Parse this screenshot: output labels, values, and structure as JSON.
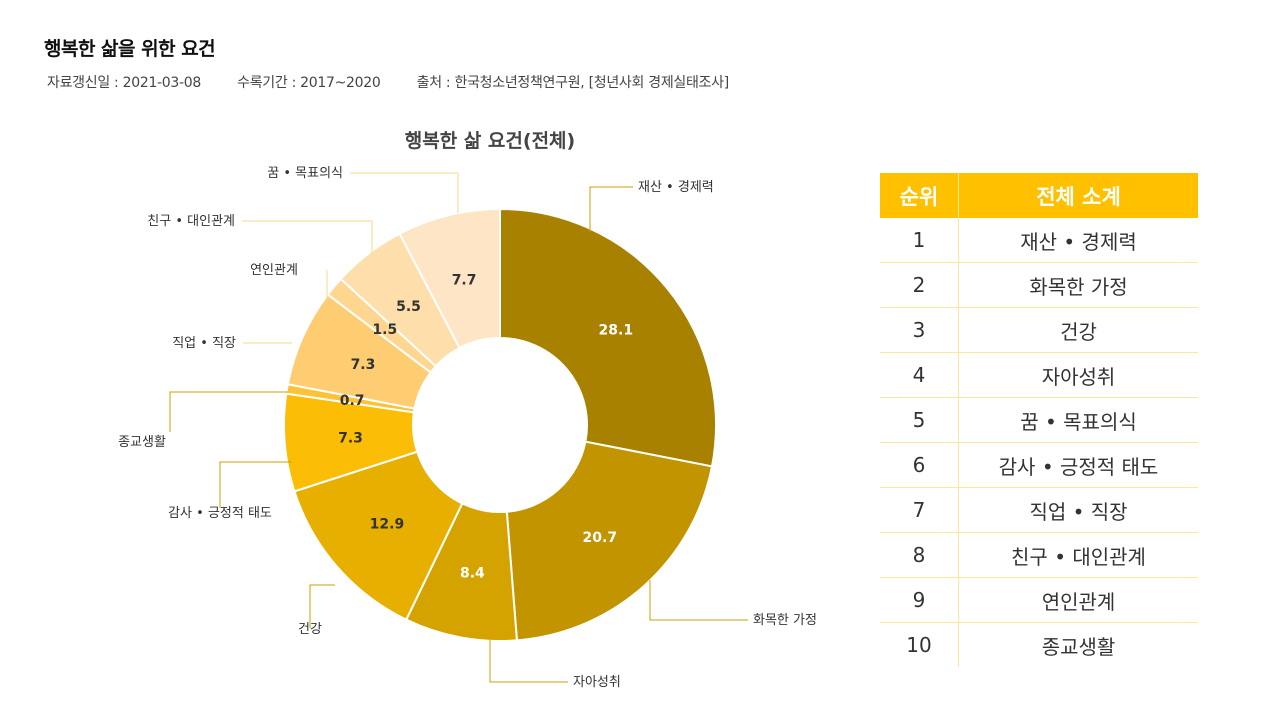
{
  "header": {
    "title": "행복한 삶을 위한 요건",
    "updated": "자료갱신일 : 2021-03-08",
    "period": "수록기간 : 2017~2020",
    "source": "출처 : 한국청소년정책연구원, [청년사회 경제실태조사]"
  },
  "chart_data": {
    "type": "pie",
    "title": "행복한 삶 요건(전체)",
    "donut": true,
    "slices": [
      {
        "label": "재산 • 경제력",
        "value": 28.1,
        "color": "#a88100"
      },
      {
        "label": "화목한 가정",
        "value": 20.7,
        "color": "#c29400"
      },
      {
        "label": "자아성취",
        "value": 8.4,
        "color": "#d5a300"
      },
      {
        "label": "건강",
        "value": 12.9,
        "color": "#e7af00"
      },
      {
        "label": "감사 • 긍정적 태도",
        "value": 7.3,
        "color": "#fbbd06"
      },
      {
        "label": "종교생활",
        "value": 0.7,
        "color": "#fec236"
      },
      {
        "label": "직업 • 직장",
        "value": 7.3,
        "color": "#fecd72"
      },
      {
        "label": "연인관계",
        "value": 1.5,
        "color": "#fed68f"
      },
      {
        "label": "친구 • 대인관계",
        "value": 5.5,
        "color": "#fedeaa"
      },
      {
        "label": "꿈 • 목표의식",
        "value": 7.7,
        "color": "#fee5c6"
      }
    ],
    "label_colors": {
      "dark": "#ffffff",
      "light": "#333333"
    }
  },
  "table": {
    "headers": [
      "순위",
      "전체 소계"
    ],
    "rows": [
      {
        "rank": "1",
        "item": "재산 • 경제력"
      },
      {
        "rank": "2",
        "item": "화목한 가정"
      },
      {
        "rank": "3",
        "item": "건강"
      },
      {
        "rank": "4",
        "item": "자아성취"
      },
      {
        "rank": "5",
        "item": "꿈 • 목표의식"
      },
      {
        "rank": "6",
        "item": "감사 • 긍정적 태도"
      },
      {
        "rank": "7",
        "item": "직업 • 직장"
      },
      {
        "rank": "8",
        "item": "친구 • 대인관계"
      },
      {
        "rank": "9",
        "item": "연인관계"
      },
      {
        "rank": "10",
        "item": "종교생활"
      }
    ],
    "colors": {
      "header": "#ffc000",
      "border": "#ffe699"
    }
  }
}
